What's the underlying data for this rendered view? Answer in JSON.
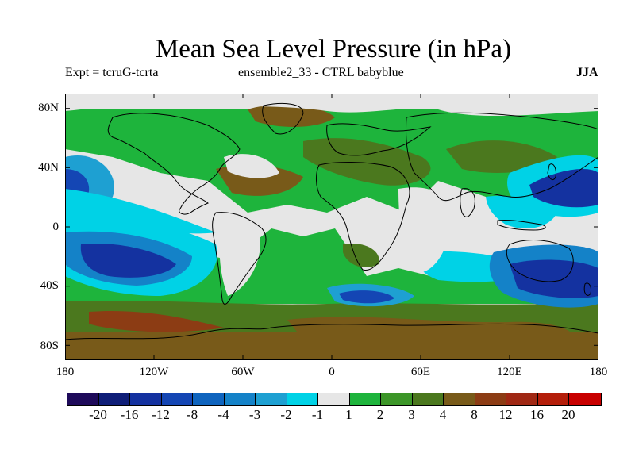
{
  "title": "Mean Sea Level Pressure (in hPa)",
  "subtitle_left": "Expt = tcruG-tcrta",
  "subtitle_center": "ensemble2_33 - CTRL babyblue",
  "subtitle_right": "JJA",
  "lat_labels": [
    "80N",
    "40N",
    "0",
    "40S",
    "80S"
  ],
  "lon_labels": [
    "180",
    "120W",
    "60W",
    "0",
    "60E",
    "120E",
    "180"
  ],
  "colorbar": {
    "colors": [
      "#1e0a5a",
      "#0f1e78",
      "#1432a0",
      "#1446b4",
      "#0f64be",
      "#1482c8",
      "#1ea0d2",
      "#00d2e6",
      "#e6e6e6",
      "#1eb43c",
      "#3c9628",
      "#4b781e",
      "#785a19",
      "#8c3c14",
      "#a02814",
      "#b41e0a",
      "#c80000"
    ],
    "labels": [
      "-20",
      "-16",
      "-12",
      "-8",
      "-4",
      "-3",
      "-2",
      "-1",
      "1",
      "2",
      "3",
      "4",
      "8",
      "12",
      "16",
      "20"
    ]
  },
  "map": {
    "projection": "equirectangular",
    "variable": "mean sea level pressure difference",
    "units": "hPa",
    "lon_range": [
      -180,
      180
    ],
    "lat_range": [
      -90,
      90
    ],
    "features": [
      {
        "region": "North Pacific (east)",
        "sign": "negative",
        "approx_level": "-3"
      },
      {
        "region": "Northwest Pacific near Japan",
        "sign": "negative",
        "approx_level": "-8"
      },
      {
        "region": "South Pacific (east)",
        "sign": "negative",
        "approx_level": "-8"
      },
      {
        "region": "Tasman Sea / SE Australia",
        "sign": "negative",
        "approx_level": "-8"
      },
      {
        "region": "South of Africa",
        "sign": "negative",
        "approx_level": "-3"
      },
      {
        "region": "Southern Ocean belt",
        "sign": "positive",
        "approx_level": "8"
      },
      {
        "region": "Europe / Arctic",
        "sign": "positive",
        "approx_level": "4"
      },
      {
        "region": "Central Africa",
        "sign": "near zero",
        "approx_level": "1"
      }
    ]
  }
}
